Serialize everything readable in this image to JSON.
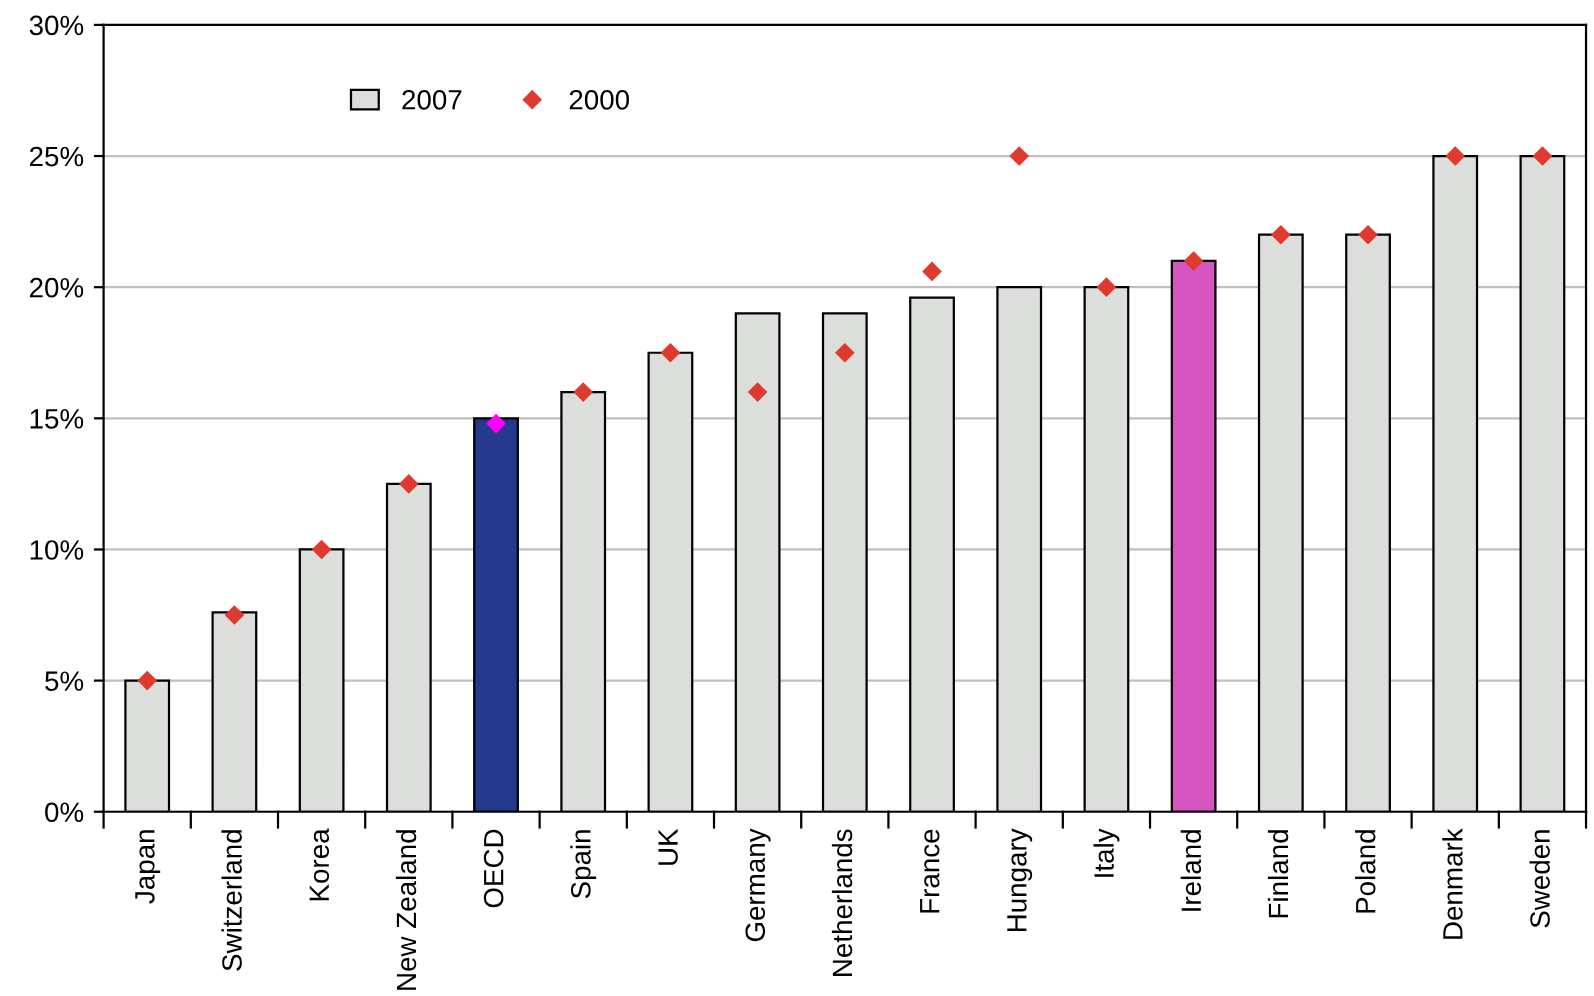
{
  "chart_data": {
    "type": "bar",
    "categories": [
      "Japan",
      "Switzerland",
      "Korea",
      "New Zealand",
      "OECD",
      "Spain",
      "UK",
      "Germany",
      "Netherlands",
      "France",
      "Hungary",
      "Italy",
      "Ireland",
      "Finland",
      "Poland",
      "Denmark",
      "Sweden"
    ],
    "series": [
      {
        "name": "2007",
        "color": "#dcdedc",
        "colors": [
          "#dcdedc",
          "#dcdedc",
          "#dcdedc",
          "#dcdedc",
          "#253a8f",
          "#dcdedc",
          "#dcdedc",
          "#dcdedc",
          "#dcdedc",
          "#dcdedc",
          "#dcdedc",
          "#dcdedc",
          "#d556c0",
          "#dcdedc",
          "#dcdedc",
          "#dcdedc",
          "#dcdedc"
        ],
        "values": [
          5,
          7.6,
          10,
          12.5,
          15,
          16,
          17.5,
          19,
          19,
          19.6,
          20,
          20,
          21,
          22,
          22,
          25,
          25
        ]
      },
      {
        "name": "2000",
        "type": "scatter",
        "color": "#e03a2f",
        "colors": [
          "#e03a2f",
          "#e03a2f",
          "#e03a2f",
          "#e03a2f",
          "#ff00ff",
          "#e03a2f",
          "#e03a2f",
          "#e03a2f",
          "#e03a2f",
          "#e03a2f",
          "#e03a2f",
          "#e03a2f",
          "#e03a2f",
          "#e03a2f",
          "#e03a2f",
          "#e03a2f",
          "#e03a2f"
        ],
        "values": [
          5,
          7.5,
          10,
          12.5,
          14.8,
          16,
          17.5,
          16,
          17.5,
          20.6,
          25,
          20,
          21,
          22,
          22,
          25,
          25
        ]
      }
    ],
    "ylim": [
      0,
      30
    ],
    "yticks": [
      {
        "value": 0,
        "label": "0%"
      },
      {
        "value": 5,
        "label": "5%"
      },
      {
        "value": 10,
        "label": "10%"
      },
      {
        "value": 15,
        "label": "15%"
      },
      {
        "value": 20,
        "label": "20%"
      },
      {
        "value": 25,
        "label": "25%"
      },
      {
        "value": 30,
        "label": "30%"
      }
    ],
    "grid": "y",
    "legend": "top left",
    "marker": "diamond"
  }
}
